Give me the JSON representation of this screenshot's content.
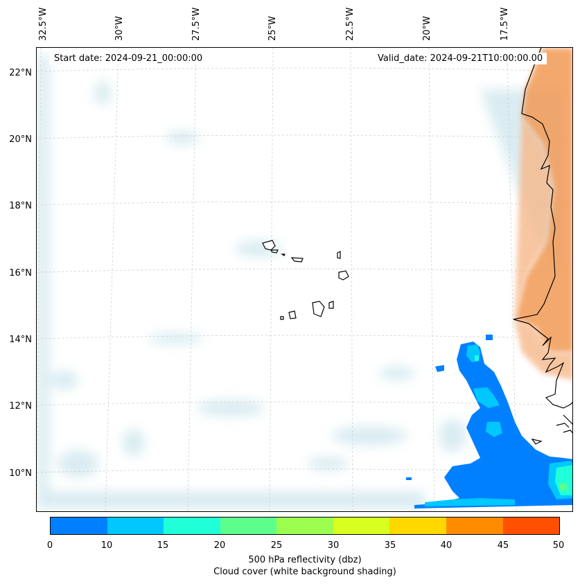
{
  "map": {
    "start_date": "Start date: 2024-09-21_00:00:00",
    "valid_date": "Valid_date: 2024-09-21T10:00:00.00",
    "lon_labels": [
      "32.5°W",
      "30°W",
      "27.5°W",
      "25°W",
      "22.5°W",
      "20°W",
      "17.5°W"
    ],
    "lat_labels": [
      "22°N",
      "20°N",
      "18°N",
      "16°N",
      "14°N",
      "12°N",
      "10°N"
    ]
  },
  "colorbar": {
    "ticks": [
      "0",
      "10",
      "15",
      "20",
      "25",
      "30",
      "35",
      "40",
      "45",
      "50"
    ],
    "colors": [
      "#0080ff",
      "#00c8ff",
      "#20ffd8",
      "#5cff8c",
      "#9cff50",
      "#d8ff20",
      "#ffd800",
      "#ff8c00",
      "#ff5000"
    ],
    "label": "500 hPa reflectivity (dbz)",
    "sublabel": "Cloud cover (white background shading)"
  },
  "colors": {
    "land_dust": "#f29a55",
    "cloud": "#bcdde6",
    "reflectivity_low": "#0080ff",
    "reflectivity_mid": "#00c8ff",
    "reflectivity_high": "#20ffd8"
  }
}
